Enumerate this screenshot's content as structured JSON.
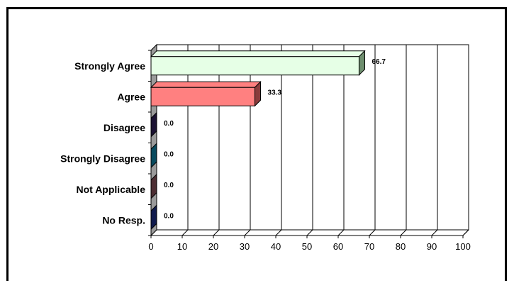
{
  "chart_data": {
    "type": "bar",
    "orientation": "horizontal",
    "categories": [
      "Strongly Agree",
      "Agree",
      "Disagree",
      "Strongly Disagree",
      "Not Applicable",
      "No Resp."
    ],
    "values": [
      66.7,
      33.3,
      0.0,
      0.0,
      0.0,
      0.0
    ],
    "value_labels": [
      "66.7",
      "33.3",
      "0.0",
      "0.0",
      "0.0",
      "0.0"
    ],
    "xlim": [
      0,
      100
    ],
    "x_ticks": [
      "0",
      "10",
      "20",
      "30",
      "40",
      "50",
      "60",
      "70",
      "80",
      "90",
      "100"
    ],
    "grid": true,
    "legend": false,
    "style": "3d",
    "colors": [
      "#e6ffe6",
      "#ff8080",
      "#2e1f55",
      "#0e6e8c",
      "#7a4a50",
      "#1b2a7a"
    ],
    "side_colors": [
      "#6f8f6f",
      "#8a3b3b",
      "#1c1233",
      "#084a5e",
      "#4d2e33",
      "#101a4d"
    ]
  }
}
